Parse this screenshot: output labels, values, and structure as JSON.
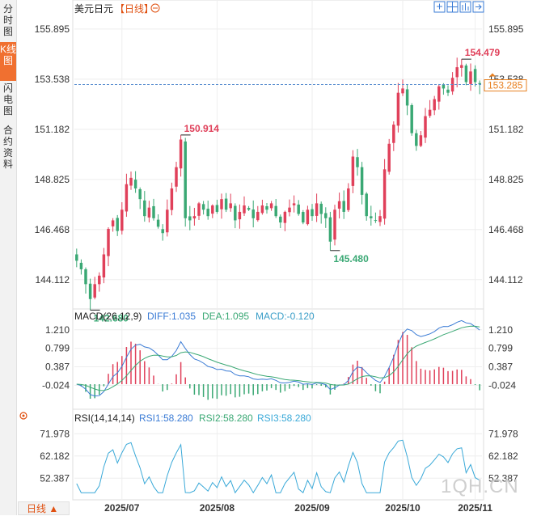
{
  "sidebar": {
    "tabs": [
      {
        "label": "分时图",
        "active": false
      },
      {
        "label": "K线图",
        "active": true
      },
      {
        "label": "闪电图",
        "active": false
      },
      {
        "label": "合约资料",
        "active": false
      }
    ]
  },
  "header": {
    "title": "美元日元",
    "period_tag": "【日线】",
    "zoom_icon": "zoom-out-icon",
    "toolbar_icons": [
      "fullscreen-icon",
      "grid-icon",
      "bar-chart-icon",
      "export-icon"
    ]
  },
  "footer": {
    "period_label": "日线",
    "watermark": "1QH.CN"
  },
  "colors": {
    "up": "#e0405a",
    "down": "#3aa874",
    "diff": "#3a7bd5",
    "dea": "#3aa874",
    "rsi": "#3aa9d8",
    "price_line": "#5a8fd0",
    "current_price_box": "#e88020"
  },
  "chart_data": [
    {
      "type": "candlestick",
      "title": "美元日元 【日线】",
      "y_ticks": [
        "155.895",
        "153.538",
        "151.182",
        "148.825",
        "146.468",
        "144.112"
      ],
      "ylim": [
        143.0,
        156.5
      ],
      "x_tick_labels": [
        "2025/07",
        "2025/08",
        "2025/09",
        "2025/10",
        "2025/11"
      ],
      "current_price": "153.285",
      "current_price_value": 153.285,
      "reference_line_value": 153.285,
      "annotations": [
        {
          "label": "142.680",
          "value": 142.68,
          "kind": "low"
        },
        {
          "label": "150.914",
          "value": 150.914,
          "kind": "high"
        },
        {
          "label": "145.480",
          "value": 145.48,
          "kind": "low"
        },
        {
          "label": "154.479",
          "value": 154.479,
          "kind": "high"
        }
      ],
      "closes": [
        145.0,
        144.6,
        143.9,
        143.2,
        143.9,
        144.3,
        145.3,
        146.5,
        146.9,
        146.4,
        147.4,
        148.6,
        148.9,
        148.4,
        147.9,
        147.1,
        147.5,
        147.0,
        146.6,
        146.3,
        147.4,
        148.4,
        149.4,
        150.7,
        147.0,
        146.9,
        147.1,
        147.7,
        147.4,
        147.1,
        147.6,
        147.3,
        147.9,
        147.4,
        147.7,
        146.9,
        147.3,
        147.6,
        147.4,
        147.0,
        147.3,
        147.6,
        147.4,
        147.7,
        147.1,
        146.8,
        147.3,
        147.5,
        147.7,
        147.2,
        146.8,
        147.4,
        147.1,
        147.7,
        147.2,
        147.0,
        145.9,
        147.4,
        147.8,
        147.3,
        148.4,
        149.9,
        149.4,
        148.1,
        147.1,
        147.0,
        146.9,
        147.1,
        149.3,
        150.5,
        151.4,
        152.9,
        153.1,
        152.3,
        151.0,
        150.4,
        150.9,
        151.8,
        152.1,
        152.6,
        153.2,
        153.1,
        152.9,
        153.6,
        154.1,
        154.2,
        153.4,
        153.9,
        153.4,
        153.3
      ],
      "macd": {
        "title": "MACD(26,12,9)",
        "diff_label": "DIFF:1.035",
        "dea_label": "DEA:1.095",
        "macd_label": "MACD:-0.120",
        "y_ticks": [
          "1.210",
          "0.799",
          "0.387",
          "-0.024"
        ],
        "ylim": [
          -0.45,
          1.35
        ]
      },
      "rsi": {
        "title": "RSI(14,14,14)",
        "rsi1_label": "RSI1:58.280",
        "rsi2_label": "RSI2:58.280",
        "rsi3_label": "RSI3:58.280",
        "y_ticks": [
          "71.978",
          "62.182",
          "52.387"
        ],
        "ylim": [
          45.0,
          76.0
        ]
      }
    }
  ]
}
